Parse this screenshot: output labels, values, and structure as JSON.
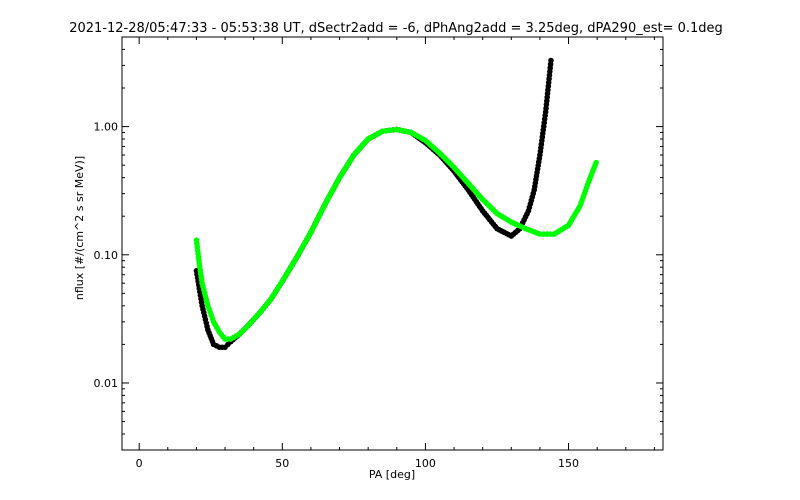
{
  "chart_data": {
    "type": "line",
    "title": "2021-12-28/05:47:33 - 05:53:38 UT, dSectr2add = -6, dPhAng2add = 3.25deg, dPA290_est=   0.1deg",
    "xlabel": "PA [deg]",
    "ylabel": "nflux [#/(cm^2 s sr MeV)]",
    "xlim": [
      -6,
      183
    ],
    "ylim": [
      0.003,
      5.0
    ],
    "yscale": "log",
    "x_ticks": [
      0,
      50,
      100,
      150
    ],
    "y_ticks": [
      {
        "value": 0.01,
        "label": "0.01"
      },
      {
        "value": 0.1,
        "label": "0.10"
      },
      {
        "value": 1.0,
        "label": "1.00"
      }
    ],
    "grid": false,
    "colors": {
      "blue_series": "#0000ff",
      "red_series": "#ff0000",
      "black_fit": "#000000",
      "green_fit": "#00ff00"
    },
    "series": [
      {
        "color": "black",
        "style": "thick-dots",
        "x": [
          20,
          22,
          24,
          26,
          28,
          30,
          32,
          35,
          38,
          42,
          46,
          50,
          55,
          60,
          65,
          70,
          75,
          80,
          85,
          90,
          95,
          100,
          105,
          110,
          115,
          120,
          125,
          130,
          133,
          136,
          138,
          140,
          142,
          144
        ],
        "y": [
          0.075,
          0.04,
          0.026,
          0.02,
          0.019,
          0.019,
          0.021,
          0.024,
          0.028,
          0.035,
          0.045,
          0.062,
          0.095,
          0.15,
          0.25,
          0.4,
          0.6,
          0.8,
          0.92,
          0.95,
          0.9,
          0.75,
          0.6,
          0.45,
          0.32,
          0.22,
          0.16,
          0.14,
          0.16,
          0.22,
          0.32,
          0.6,
          1.3,
          3.5
        ]
      },
      {
        "color": "green",
        "style": "thick-dots",
        "x": [
          20,
          21,
          22,
          24,
          26,
          28,
          30,
          32,
          35,
          38,
          42,
          46,
          50,
          55,
          60,
          65,
          70,
          75,
          80,
          85,
          90,
          95,
          100,
          105,
          110,
          115,
          120,
          125,
          130,
          135,
          140,
          145,
          150,
          154,
          157,
          160
        ],
        "y": [
          0.13,
          0.085,
          0.06,
          0.04,
          0.03,
          0.025,
          0.022,
          0.022,
          0.024,
          0.028,
          0.035,
          0.045,
          0.062,
          0.095,
          0.15,
          0.25,
          0.4,
          0.6,
          0.8,
          0.92,
          0.95,
          0.9,
          0.78,
          0.62,
          0.48,
          0.36,
          0.27,
          0.21,
          0.18,
          0.16,
          0.145,
          0.145,
          0.17,
          0.24,
          0.37,
          0.55
        ]
      }
    ]
  }
}
